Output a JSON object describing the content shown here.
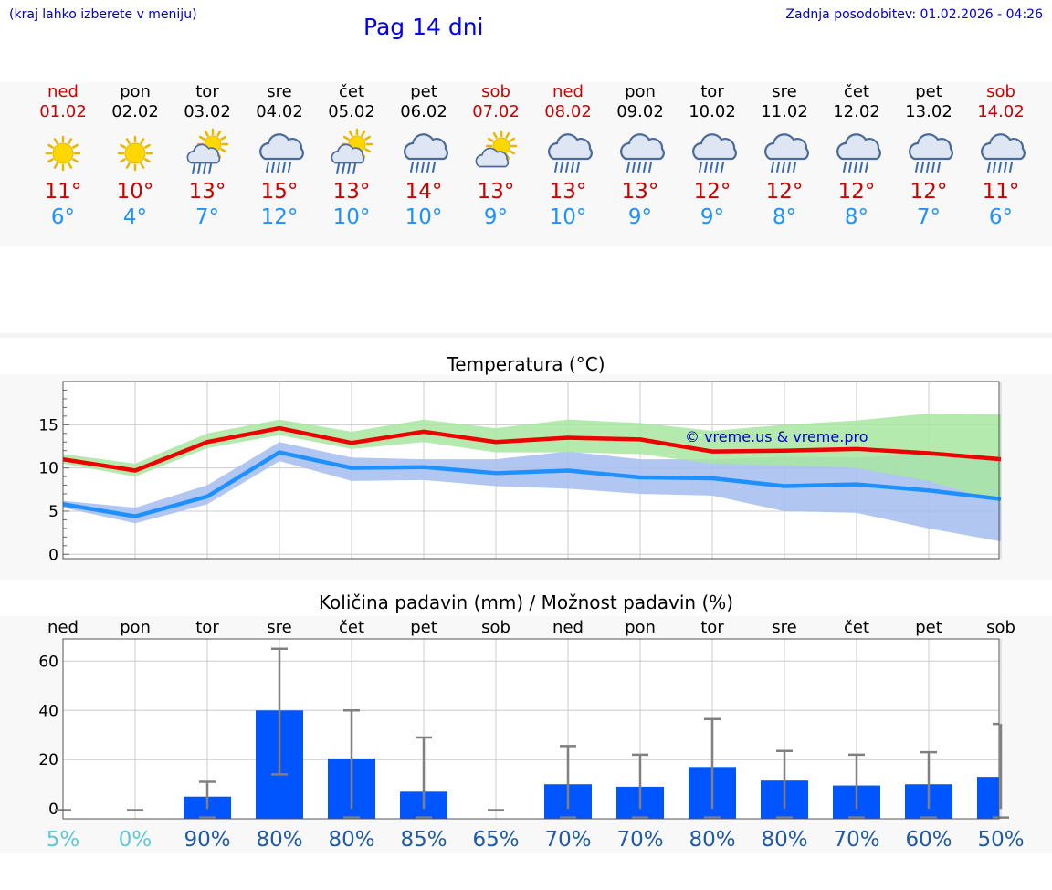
{
  "header": {
    "hint": "(kraj lahko izberete v meniju)",
    "title": "Pag 14 dni",
    "last_update": "Zadnja posodobitev: 01.02.2026 - 04:26"
  },
  "colors": {
    "max_line": "#ee0000",
    "max_band": "#a8e6a0",
    "min_line": "#1e90ff",
    "min_band": "#a8c0f0",
    "bar": "#0055ff",
    "weekend": "#cc0000"
  },
  "days": [
    {
      "name": "ned",
      "date": "01.02",
      "weekend": true,
      "icon": "sun-icon",
      "tmax": "11°",
      "tmin": "6°"
    },
    {
      "name": "pon",
      "date": "02.02",
      "weekend": false,
      "icon": "sun-icon",
      "tmax": "10°",
      "tmin": "4°"
    },
    {
      "name": "tor",
      "date": "03.02",
      "weekend": false,
      "icon": "sun-cloud-rain-icon",
      "tmax": "13°",
      "tmin": "7°"
    },
    {
      "name": "sre",
      "date": "04.02",
      "weekend": false,
      "icon": "cloud-rain-icon",
      "tmax": "15°",
      "tmin": "12°"
    },
    {
      "name": "čet",
      "date": "05.02",
      "weekend": false,
      "icon": "sun-cloud-rain-icon",
      "tmax": "13°",
      "tmin": "10°"
    },
    {
      "name": "pet",
      "date": "06.02",
      "weekend": false,
      "icon": "cloud-rain-icon",
      "tmax": "14°",
      "tmin": "10°"
    },
    {
      "name": "sob",
      "date": "07.02",
      "weekend": true,
      "icon": "sun-cloud-icon",
      "tmax": "13°",
      "tmin": "9°"
    },
    {
      "name": "ned",
      "date": "08.02",
      "weekend": true,
      "icon": "cloud-rain-icon",
      "tmax": "13°",
      "tmin": "10°"
    },
    {
      "name": "pon",
      "date": "09.02",
      "weekend": false,
      "icon": "cloud-rain-icon",
      "tmax": "13°",
      "tmin": "9°"
    },
    {
      "name": "tor",
      "date": "10.02",
      "weekend": false,
      "icon": "cloud-rain-icon",
      "tmax": "12°",
      "tmin": "9°"
    },
    {
      "name": "sre",
      "date": "11.02",
      "weekend": false,
      "icon": "cloud-rain-icon",
      "tmax": "12°",
      "tmin": "8°"
    },
    {
      "name": "čet",
      "date": "12.02",
      "weekend": false,
      "icon": "cloud-rain-icon",
      "tmax": "12°",
      "tmin": "8°"
    },
    {
      "name": "pet",
      "date": "13.02",
      "weekend": false,
      "icon": "cloud-rain-icon",
      "tmax": "12°",
      "tmin": "7°"
    },
    {
      "name": "sob",
      "date": "14.02",
      "weekend": true,
      "icon": "cloud-rain-icon",
      "tmax": "11°",
      "tmin": "6°"
    }
  ],
  "chart_data": [
    {
      "type": "line",
      "title": "Temperatura (°C)",
      "watermark": "© vreme.us & vreme.pro",
      "x": [
        0,
        1,
        2,
        3,
        4,
        5,
        6,
        7,
        8,
        9,
        10,
        11,
        12,
        13
      ],
      "ylim": [
        -0.5,
        20
      ],
      "yticks": [
        0,
        5,
        10,
        15
      ],
      "grid": true,
      "series": [
        {
          "name": "max",
          "values": [
            11.0,
            9.7,
            13.0,
            14.6,
            12.9,
            14.2,
            13.0,
            13.5,
            13.3,
            11.9,
            12.0,
            12.2,
            11.7,
            11.0
          ],
          "band_low": [
            10.5,
            9.0,
            12.3,
            13.8,
            12.2,
            13.0,
            11.8,
            11.8,
            11.6,
            10.5,
            10.3,
            10.0,
            8.5,
            6.0
          ],
          "band_high": [
            11.6,
            10.5,
            14.0,
            15.6,
            14.2,
            15.6,
            14.6,
            15.6,
            15.2,
            14.3,
            15.0,
            15.5,
            16.3,
            16.2
          ]
        },
        {
          "name": "min",
          "values": [
            5.8,
            4.4,
            6.7,
            11.8,
            10.0,
            10.1,
            9.4,
            9.7,
            8.9,
            8.8,
            7.9,
            8.1,
            7.4,
            6.4
          ],
          "band_low": [
            5.4,
            3.6,
            5.8,
            10.8,
            8.5,
            8.6,
            7.9,
            7.6,
            7.0,
            6.8,
            5.0,
            4.8,
            3.0,
            1.5
          ],
          "band_high": [
            6.2,
            5.4,
            8.0,
            13.0,
            11.2,
            11.0,
            11.0,
            11.9,
            11.0,
            11.0,
            11.3,
            11.2,
            11.6,
            11.3
          ]
        }
      ]
    },
    {
      "type": "bar",
      "title": "Količina padavin (mm) / Možnost padavin (%)",
      "categories": [
        "ned",
        "pon",
        "tor",
        "sre",
        "čet",
        "pet",
        "sob",
        "ned",
        "pon",
        "tor",
        "sre",
        "čet",
        "pet",
        "sob"
      ],
      "ylim": [
        -4,
        69
      ],
      "yticks": [
        0,
        20,
        40,
        60
      ],
      "values": [
        0,
        0,
        5,
        40,
        20.5,
        7,
        0,
        10,
        9,
        17,
        11.5,
        9.5,
        10,
        13
      ],
      "err_low": [
        0,
        0,
        0,
        14,
        0,
        0,
        0,
        0,
        0,
        0,
        0,
        0,
        0,
        0
      ],
      "err_high": [
        0,
        0,
        11,
        65,
        40,
        29,
        0,
        25.5,
        22,
        36.5,
        23.5,
        22,
        23,
        34.5
      ],
      "probability": [
        "5%",
        "0%",
        "90%",
        "80%",
        "80%",
        "85%",
        "65%",
        "70%",
        "70%",
        "80%",
        "80%",
        "70%",
        "60%",
        "50%"
      ],
      "probability_low": [
        true,
        true,
        false,
        false,
        false,
        false,
        false,
        false,
        false,
        false,
        false,
        false,
        false,
        false
      ]
    }
  ]
}
